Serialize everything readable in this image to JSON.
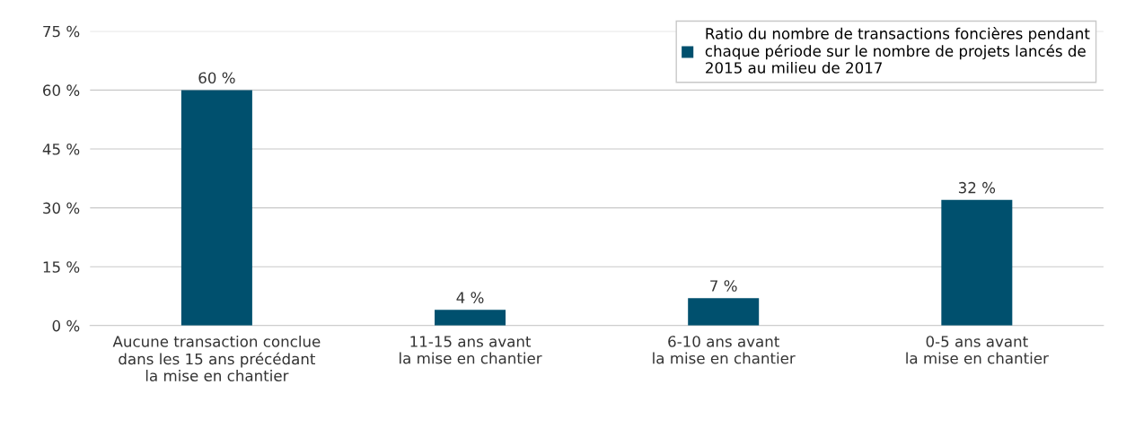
{
  "chart_data": {
    "type": "bar",
    "categories": [
      "Aucune transaction conclue\ndans les 15 ans précédant\nla mise en chantier",
      "11-15 ans avant\nla mise en chantier",
      "6-10 ans avant\nla mise en chantier",
      "0-5 ans avant\nla mise en chantier"
    ],
    "series": [
      {
        "name": "Ratio du nombre de transactions foncières pendant\nchaque période sur le nombre de projets lancés de\n2015 au milieu de 2017",
        "color": "#00506e",
        "values": [
          60,
          4,
          7,
          32
        ],
        "value_labels": [
          "60 %",
          "4 %",
          "7 %",
          "32 %"
        ]
      }
    ],
    "ylim": [
      0,
      75
    ],
    "yticks": [
      {
        "value": 0,
        "label": "0 %"
      },
      {
        "value": 15,
        "label": "15 %"
      },
      {
        "value": 30,
        "label": "30 %"
      },
      {
        "value": 45,
        "label": "45 %"
      },
      {
        "value": 60,
        "label": "60 %"
      },
      {
        "value": 75,
        "label": "75 %"
      }
    ],
    "grid": "y",
    "legend": "top right"
  }
}
